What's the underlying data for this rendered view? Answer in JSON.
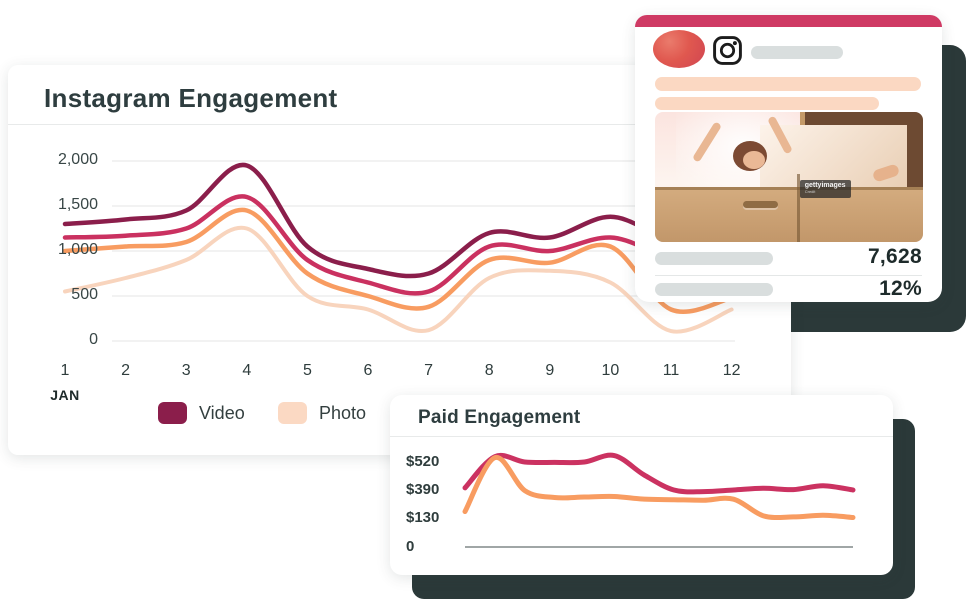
{
  "page": {
    "background": "#ffffff"
  },
  "colors": {
    "accent_pink": "#cf3a64",
    "dark_slate": "#2e3d3f",
    "shadow_card": "#2b3939",
    "video_maroon": "#8b1e4b",
    "crimson": "#ca3160",
    "orange": "#f89c61",
    "photo_peach": "#f8d4bd"
  },
  "main_card": {
    "title": "Instagram Engagement",
    "legend": [
      {
        "label": "Video",
        "color": "#8b1e4b"
      },
      {
        "label": "Photo",
        "color": "#fbd9c3"
      }
    ]
  },
  "ig_card": {
    "header_color": "#cf3a64",
    "watermark": "gettyimages",
    "watermark_sub": "Credit",
    "stats": [
      {
        "value": "7,628"
      },
      {
        "value": "12%"
      }
    ]
  },
  "paid_card": {
    "title": "Paid Engagement"
  },
  "chart_data": [
    {
      "type": "line",
      "title": "Instagram Engagement",
      "x": [
        1,
        2,
        3,
        4,
        5,
        6,
        7,
        8,
        9,
        10,
        11,
        12
      ],
      "x_tick_labels": [
        "1",
        "2",
        "3",
        "4",
        "5",
        "6",
        "7",
        "8",
        "9",
        "10",
        "11",
        "12"
      ],
      "x_sublabel": "JAN",
      "xlabel": "",
      "ylabel": "",
      "ylim": [
        0,
        2000
      ],
      "grid": "horizontal",
      "legend_position": "bottom",
      "y_ticks": [
        {
          "label": "2,000",
          "value": 2000
        },
        {
          "label": "1,500",
          "value": 1500
        },
        {
          "label": "1,000",
          "value": 1000
        },
        {
          "label": "500",
          "value": 500
        },
        {
          "label": "0",
          "value": 0
        }
      ],
      "series": [
        {
          "name": "Video",
          "color": "#8b1e4b",
          "width": 4.5,
          "values": [
            1300,
            1350,
            1450,
            1950,
            1050,
            800,
            750,
            1200,
            1150,
            1380,
            1150,
            1250
          ]
        },
        {
          "name": "",
          "color": "#ca3160",
          "width": 4.5,
          "values": [
            1150,
            1170,
            1250,
            1600,
            900,
            650,
            550,
            1050,
            1000,
            1150,
            950,
            1050
          ]
        },
        {
          "name": "",
          "color": "#f89c61",
          "width": 4.5,
          "values": [
            1000,
            1050,
            1100,
            1450,
            750,
            500,
            380,
            900,
            870,
            1050,
            350,
            480
          ]
        },
        {
          "name": "Photo",
          "color": "#f8d4bd",
          "width": 4,
          "values": [
            550,
            700,
            900,
            1250,
            500,
            350,
            120,
            700,
            780,
            650,
            110,
            350
          ]
        }
      ],
      "note": "right end of upper series hidden behind overlapping post card"
    },
    {
      "type": "line",
      "title": "Paid Engagement",
      "xlabel": "",
      "ylabel": "",
      "grid": "off",
      "y_ticks": [
        {
          "label": "$520",
          "value": 520
        },
        {
          "label": "$390",
          "value": 390
        },
        {
          "label": "$130",
          "value": 130
        },
        {
          "label": "0",
          "value": 0
        }
      ],
      "series": [
        {
          "name": "",
          "color": "#cb3261",
          "width": 5,
          "values": [
            400,
            545,
            520,
            518,
            520,
            550,
            460,
            390,
            375,
            390,
            398,
            392,
            410,
            390
          ]
        },
        {
          "name": "",
          "color": "#f89c61",
          "width": 5,
          "values": [
            190,
            540,
            385,
            320,
            325,
            330,
            305,
            300,
            295,
            305,
            150,
            140,
            155,
            135
          ]
        }
      ]
    }
  ]
}
